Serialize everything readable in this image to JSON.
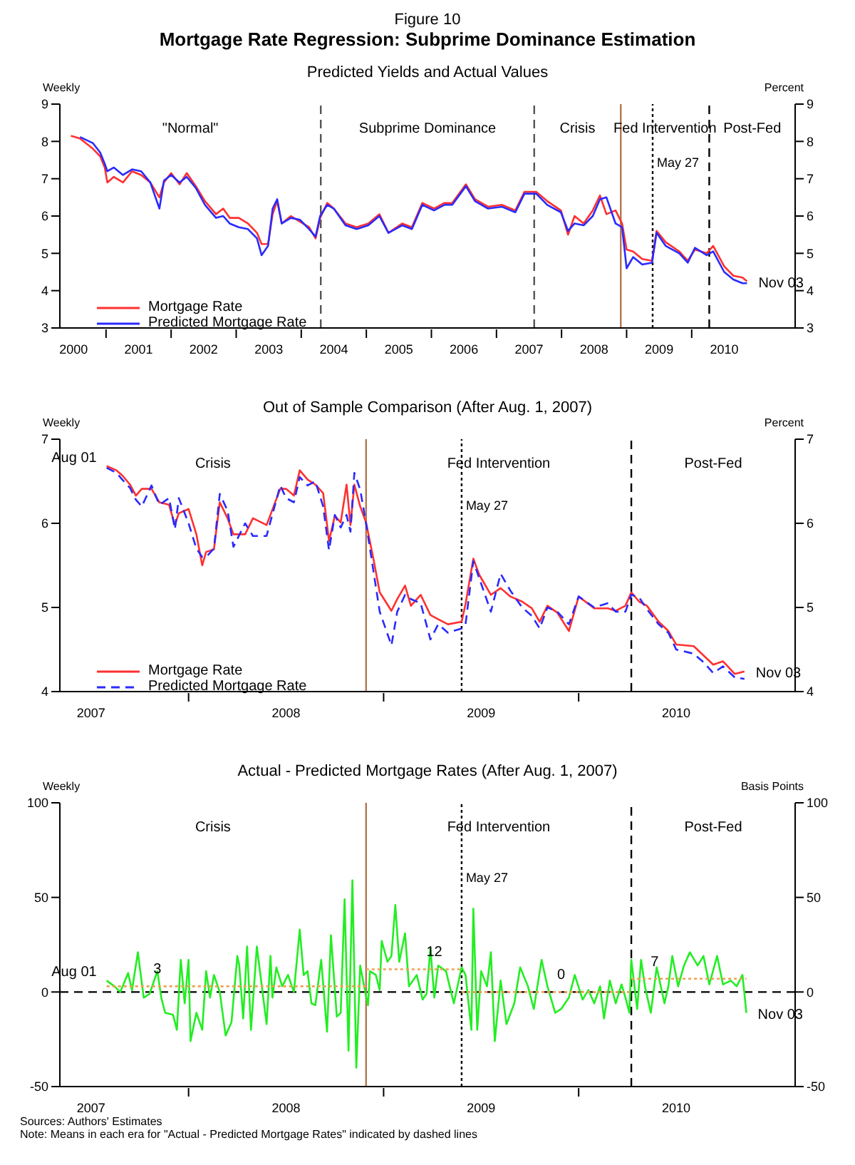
{
  "chart_data": [
    {
      "type": "line",
      "title": "Mortgage Rate Regression: Subprime Dominance Estimation",
      "subtitle": "Predicted Yields and Actual Values",
      "ylabel": "Weekly",
      "y2label": "Percent",
      "annotations": [
        "\"Normal\"",
        "Subprime Dominance",
        "Crisis",
        "Fed Intervention",
        "Post-Fed",
        "Figure 10",
        {
          "text": "Nov 03",
          "x": 2010.85,
          "y": 4.25
        }
      ],
      "x": [
        2000.46,
        2000.6,
        2000.8,
        2000.91,
        2000.98,
        2001.02,
        2001.12,
        2001.26,
        2001.4,
        2001.54,
        2001.68,
        2001.82,
        2001.89,
        2002.0,
        2002.13,
        2002.24,
        2002.38,
        2002.52,
        2002.69,
        2002.8,
        2002.9,
        2003.04,
        2003.18,
        2003.32,
        2003.39,
        2003.49,
        2003.56,
        2003.63,
        2003.7,
        2003.84,
        2003.98,
        2004.12,
        2004.22,
        2004.29,
        2004.4,
        2004.5,
        2004.68,
        2004.85,
        2005.03,
        2005.2,
        2005.34,
        2005.55,
        2005.7,
        2005.86,
        2006.04,
        2006.2,
        2006.32,
        2006.53,
        2006.67,
        2006.87,
        2007.08,
        2007.29,
        2007.43,
        2007.61,
        2007.78,
        2007.99,
        2008.1,
        2008.2,
        2008.34,
        2008.48,
        2008.59,
        2008.69,
        2008.83,
        2008.93,
        2009.0,
        2009.1,
        2009.24,
        2009.39,
        2009.46,
        2009.6,
        2009.81,
        2009.94,
        2010.05,
        2010.23,
        2010.33,
        2010.5,
        2010.64,
        2010.78,
        2010.85
      ],
      "series": [
        {
          "name": "Mortgage Rate",
          "color": "#ff3030",
          "values": [
            8.15,
            8.08,
            7.8,
            7.6,
            7.3,
            6.9,
            7.05,
            6.9,
            7.2,
            7.1,
            6.9,
            6.5,
            6.9,
            7.15,
            6.85,
            7.15,
            6.8,
            6.4,
            6.05,
            6.2,
            5.95,
            5.95,
            5.8,
            5.55,
            5.25,
            5.25,
            6.05,
            6.4,
            5.8,
            6.0,
            5.85,
            5.7,
            5.4,
            5.95,
            6.35,
            6.2,
            5.8,
            5.7,
            5.8,
            6.05,
            5.55,
            5.8,
            5.7,
            6.35,
            6.2,
            6.35,
            6.35,
            6.85,
            6.45,
            6.25,
            6.3,
            6.15,
            6.65,
            6.65,
            6.4,
            6.15,
            5.5,
            6.0,
            5.8,
            6.15,
            6.55,
            6.05,
            6.15,
            5.8,
            5.1,
            5.05,
            4.85,
            4.8,
            5.6,
            5.3,
            5.05,
            4.8,
            5.1,
            5.0,
            5.2,
            4.65,
            4.4,
            4.35,
            4.25
          ]
        },
        {
          "name": "Predicted Mortgage Rate",
          "color": "#2a2aff",
          "values": [
            null,
            8.12,
            7.95,
            7.7,
            7.4,
            7.2,
            7.3,
            7.1,
            7.25,
            7.2,
            6.9,
            6.2,
            6.95,
            7.1,
            6.9,
            7.05,
            6.75,
            6.3,
            5.95,
            6.0,
            5.8,
            5.7,
            5.65,
            5.4,
            4.95,
            5.2,
            6.2,
            6.45,
            5.8,
            5.95,
            5.9,
            5.65,
            5.45,
            6.0,
            6.3,
            6.2,
            5.75,
            5.65,
            5.75,
            6.0,
            5.55,
            5.75,
            5.65,
            6.3,
            6.15,
            6.3,
            6.3,
            6.8,
            6.4,
            6.2,
            6.25,
            6.1,
            6.6,
            6.6,
            6.3,
            6.1,
            5.6,
            5.8,
            5.75,
            6.0,
            6.45,
            6.5,
            5.8,
            5.7,
            4.6,
            4.9,
            4.7,
            4.75,
            5.55,
            5.2,
            5.0,
            4.75,
            5.15,
            4.95,
            5.05,
            4.5,
            4.3,
            4.2,
            4.2
          ]
        }
      ],
      "xlim": [
        2000.29,
        2011.59
      ],
      "xticks": [
        {
          "value": 2000.5,
          "label": "2000"
        },
        {
          "value": 2001,
          "label": null
        },
        {
          "value": 2001.5,
          "label": "2001"
        },
        {
          "value": 2002,
          "label": null
        },
        {
          "value": 2002.5,
          "label": "2002"
        },
        {
          "value": 2003,
          "label": null
        },
        {
          "value": 2003.5,
          "label": "2003"
        },
        {
          "value": 2004,
          "label": null
        },
        {
          "value": 2004.5,
          "label": "2004"
        },
        {
          "value": 2005,
          "label": null
        },
        {
          "value": 2005.5,
          "label": "2005"
        },
        {
          "value": 2006,
          "label": null
        },
        {
          "value": 2006.5,
          "label": "2006"
        },
        {
          "value": 2007,
          "label": null
        },
        {
          "value": 2007.5,
          "label": "2007"
        },
        {
          "value": 2008,
          "label": null
        },
        {
          "value": 2008.5,
          "label": "2008"
        },
        {
          "value": 2009,
          "label": null
        },
        {
          "value": 2009.5,
          "label": "2009"
        },
        {
          "value": 2010,
          "label": null
        },
        {
          "value": 2010.5,
          "label": "2010"
        }
      ],
      "ylim": [
        3,
        9
      ],
      "yticks": [
        3,
        4,
        5,
        6,
        7,
        8,
        9
      ],
      "y2lim": [
        3,
        9
      ],
      "y2ticks": [
        3,
        4,
        5,
        6,
        7,
        8,
        9
      ],
      "ref_lines": [
        {
          "axis": "x",
          "value": 2004.3,
          "color": "#555555",
          "line_style": "dashed"
        },
        {
          "axis": "x",
          "value": 2007.58,
          "color": "#555555",
          "line_style": "dashed"
        },
        {
          "axis": "x",
          "value": 2008.91,
          "color": "#b07850",
          "line_style": "solid"
        },
        {
          "axis": "x",
          "value": 2009.4,
          "label": "May 27",
          "color": "#000000",
          "line_style": "dotted"
        },
        {
          "axis": "x",
          "value": 2010.27,
          "color": "#000000",
          "line_style": "dashed"
        }
      ],
      "legend": "bottom left",
      "line_style": "solid"
    },
    {
      "type": "line",
      "title": "Out of Sample Comparison (After Aug. 1, 2007)",
      "ylabel": "Weekly",
      "y2label": "Percent",
      "annotations": [
        "Crisis",
        "Fed Intervention",
        "Post-Fed",
        {
          "text": "Aug 01",
          "x": 2007.58,
          "y": 6.68
        },
        {
          "text": "Nov 03",
          "x": 2010.85,
          "y": 4.24
        }
      ],
      "x": [
        2007.58,
        2007.63,
        2007.66,
        2007.7,
        2007.73,
        2007.76,
        2007.81,
        2007.85,
        2007.9,
        2007.93,
        2007.95,
        2008.0,
        2008.04,
        2008.07,
        2008.09,
        2008.13,
        2008.16,
        2008.2,
        2008.23,
        2008.29,
        2008.33,
        2008.4,
        2008.47,
        2008.5,
        2008.54,
        2008.57,
        2008.61,
        2008.65,
        2008.69,
        2008.72,
        2008.75,
        2008.78,
        2008.81,
        2008.83,
        2008.85,
        2008.88,
        2008.91,
        2008.95,
        2008.98,
        2009.04,
        2009.07,
        2009.11,
        2009.14,
        2009.19,
        2009.24,
        2009.28,
        2009.33,
        2009.4,
        2009.42,
        2009.46,
        2009.49,
        2009.55,
        2009.6,
        2009.65,
        2009.71,
        2009.76,
        2009.8,
        2009.84,
        2009.89,
        2009.95,
        2010.0,
        2010.08,
        2010.15,
        2010.19,
        2010.24,
        2010.27,
        2010.31,
        2010.35,
        2010.41,
        2010.46,
        2010.5,
        2010.59,
        2010.64,
        2010.69,
        2010.74,
        2010.8,
        2010.85
      ],
      "series": [
        {
          "name": "Mortgage Rate",
          "color": "#ff3030",
          "line_style": "solid",
          "values": [
            6.68,
            6.63,
            6.57,
            6.46,
            6.33,
            6.41,
            6.41,
            6.25,
            6.22,
            5.98,
            6.12,
            6.17,
            5.87,
            5.5,
            5.66,
            5.69,
            6.25,
            6.06,
            5.87,
            5.87,
            6.06,
            5.98,
            6.41,
            6.41,
            6.33,
            6.63,
            6.52,
            6.46,
            6.36,
            5.79,
            6.09,
            6.01,
            6.46,
            5.98,
            6.46,
            6.2,
            6.01,
            5.55,
            5.18,
            4.96,
            5.1,
            5.26,
            5.02,
            5.15,
            4.91,
            4.86,
            4.8,
            4.83,
            5.04,
            5.58,
            5.39,
            5.15,
            5.23,
            5.13,
            5.07,
            4.99,
            4.83,
            5.02,
            4.94,
            4.72,
            5.13,
            4.99,
            4.99,
            4.96,
            5.02,
            5.18,
            5.07,
            5.02,
            4.83,
            4.72,
            4.56,
            4.54,
            4.43,
            4.32,
            4.36,
            4.21,
            4.24
          ]
        },
        {
          "name": "Predicted Mortgage Rate",
          "color": "#2a2aff",
          "line_style": "dashed",
          "values": [
            6.66,
            6.6,
            6.52,
            6.42,
            6.28,
            6.2,
            6.45,
            6.22,
            6.3,
            5.93,
            6.3,
            6.0,
            5.7,
            5.6,
            5.6,
            5.7,
            6.35,
            6.15,
            5.72,
            6.0,
            5.85,
            5.85,
            6.45,
            6.3,
            6.25,
            6.55,
            6.45,
            6.5,
            6.2,
            5.68,
            6.1,
            5.95,
            6.1,
            5.9,
            6.6,
            6.4,
            6.0,
            5.4,
            4.95,
            4.55,
            4.95,
            5.15,
            5.1,
            5.05,
            4.62,
            4.8,
            4.7,
            4.75,
            4.8,
            5.55,
            5.35,
            4.95,
            5.4,
            5.2,
            5.0,
            4.9,
            4.75,
            5.0,
            4.95,
            4.8,
            5.13,
            5.0,
            5.05,
            4.95,
            4.95,
            5.15,
            5.12,
            4.98,
            4.8,
            4.7,
            4.5,
            4.45,
            4.35,
            4.22,
            4.3,
            4.17,
            4.15
          ]
        }
      ],
      "xlim": [
        2007.34,
        2011.11
      ],
      "xticks": [
        {
          "value": 2007.5,
          "label": "2007"
        },
        {
          "value": 2008,
          "label": null
        },
        {
          "value": 2008.5,
          "label": "2008"
        },
        {
          "value": 2009,
          "label": null
        },
        {
          "value": 2009.5,
          "label": "2009"
        },
        {
          "value": 2010,
          "label": null
        },
        {
          "value": 2010.5,
          "label": "2010"
        }
      ],
      "ylim": [
        4,
        7
      ],
      "yticks": [
        4,
        5,
        6,
        7
      ],
      "y2lim": [
        4,
        7
      ],
      "y2ticks": [
        4,
        5,
        6,
        7
      ],
      "ref_lines": [
        {
          "axis": "x",
          "value": 2008.91,
          "color": "#b07850",
          "line_style": "solid"
        },
        {
          "axis": "x",
          "value": 2009.4,
          "label": "May 27",
          "color": "#000000",
          "line_style": "dotted"
        },
        {
          "axis": "x",
          "value": 2010.27,
          "color": "#000000",
          "line_style": "dashed"
        }
      ],
      "legend": "bottom left"
    },
    {
      "type": "line",
      "title": "Actual - Predicted Mortgage Rates (After Aug. 1, 2007)",
      "ylabel": "Weekly",
      "y2label": "Basis Points",
      "annotations": [
        "Crisis",
        "Fed Intervention",
        "Post-Fed",
        {
          "text": "Aug 01",
          "x": 2007.58,
          "y": 6
        },
        {
          "text": "Nov 03",
          "x": 2010.86,
          "y": -11
        },
        {
          "text": "3",
          "x": 2007.84,
          "y": 3
        },
        {
          "text": "12",
          "x": 2009.26,
          "y": 12
        },
        {
          "text": "0",
          "x": 2009.91,
          "y": 0
        },
        {
          "text": "7",
          "x": 2010.39,
          "y": 7
        },
        "Sources: Authors' Estimates",
        "Note: Means in each era for \"Actual - Predicted Mortgage Rates\" indicated by dashed lines"
      ],
      "x": [
        2007.58,
        2007.62,
        2007.65,
        2007.69,
        2007.71,
        2007.74,
        2007.77,
        2007.8,
        2007.84,
        2007.86,
        2007.88,
        2007.92,
        2007.94,
        2007.96,
        2007.98,
        2008.0,
        2008.01,
        2008.04,
        2008.07,
        2008.09,
        2008.11,
        2008.13,
        2008.16,
        2008.19,
        2008.22,
        2008.25,
        2008.26,
        2008.28,
        2008.3,
        2008.32,
        2008.35,
        2008.4,
        2008.42,
        2008.43,
        2008.45,
        2008.48,
        2008.51,
        2008.54,
        2008.57,
        2008.59,
        2008.61,
        2008.63,
        2008.65,
        2008.68,
        2008.71,
        2008.73,
        2008.76,
        2008.78,
        2008.8,
        2008.82,
        2008.84,
        2008.86,
        2008.88,
        2008.9,
        2008.92,
        2008.93,
        2008.96,
        2008.98,
        2008.99,
        2009.02,
        2009.04,
        2009.06,
        2009.08,
        2009.11,
        2009.13,
        2009.17,
        2009.2,
        2009.22,
        2009.24,
        2009.26,
        2009.28,
        2009.32,
        2009.36,
        2009.4,
        2009.42,
        2009.45,
        2009.46,
        2009.48,
        2009.5,
        2009.53,
        2009.55,
        2009.57,
        2009.6,
        2009.63,
        2009.67,
        2009.7,
        2009.74,
        2009.77,
        2009.81,
        2009.84,
        2009.88,
        2009.91,
        2009.95,
        2009.98,
        2010.02,
        2010.05,
        2010.08,
        2010.11,
        2010.13,
        2010.16,
        2010.19,
        2010.22,
        2010.24,
        2010.26,
        2010.27,
        2010.3,
        2010.32,
        2010.34,
        2010.37,
        2010.4,
        2010.44,
        2010.46,
        2010.48,
        2010.51,
        2010.54,
        2010.57,
        2010.61,
        2010.64,
        2010.67,
        2010.71,
        2010.74,
        2010.78,
        2010.81,
        2010.84,
        2010.86
      ],
      "series": [
        {
          "color": "#22ee22",
          "values": [
            6,
            3,
            0,
            10,
            1,
            21,
            -3,
            -1,
            11,
            -3,
            -11,
            -12,
            -20,
            17,
            -6,
            17,
            -26,
            -11,
            -20,
            11,
            -3,
            9,
            0,
            -23,
            -16,
            19,
            14,
            -14,
            24,
            -20,
            24,
            -17,
            19,
            -3,
            13,
            3,
            9,
            0,
            33,
            9,
            11,
            -6,
            -7,
            17,
            -21,
            30,
            -13,
            -11,
            49,
            -31,
            59,
            -40,
            14,
            3,
            -7,
            11,
            9,
            1,
            27,
            16,
            19,
            46,
            16,
            31,
            3,
            9,
            -4,
            -1,
            23,
            -3,
            14,
            11,
            -6,
            13,
            9,
            -20,
            44,
            -20,
            11,
            3,
            21,
            -26,
            6,
            -17,
            -6,
            13,
            3,
            -9,
            17,
            3,
            -11,
            -9,
            -3,
            9,
            -4,
            1,
            -6,
            3,
            -14,
            6,
            -6,
            4,
            -3,
            -11,
            17,
            -9,
            17,
            3,
            -11,
            13,
            -6,
            3,
            19,
            3,
            14,
            21,
            14,
            19,
            4,
            19,
            4,
            6,
            3,
            9,
            -11
          ]
        },
        {
          "color": "#f0a050",
          "line_style": "dotted",
          "x": [
            2007.58,
            2008.91
          ],
          "values": [
            3,
            3
          ]
        },
        {
          "color": "#f0a050",
          "line_style": "dotted",
          "x": [
            2008.91,
            2009.4
          ],
          "values": [
            12,
            12
          ]
        },
        {
          "color": "#f0a050",
          "line_style": "dotted",
          "x": [
            2009.4,
            2010.27
          ],
          "values": [
            0,
            0
          ]
        },
        {
          "color": "#f0a050",
          "line_style": "dotted",
          "x": [
            2010.27,
            2010.86
          ],
          "values": [
            7,
            7
          ]
        }
      ],
      "xlim": [
        2007.34,
        2011.11
      ],
      "xticks": [
        {
          "value": 2007.5,
          "label": "2007"
        },
        {
          "value": 2008,
          "label": null
        },
        {
          "value": 2008.5,
          "label": "2008"
        },
        {
          "value": 2009,
          "label": null
        },
        {
          "value": 2009.5,
          "label": "2009"
        },
        {
          "value": 2010,
          "label": null
        },
        {
          "value": 2010.5,
          "label": "2010"
        }
      ],
      "ylim": [
        -50,
        100
      ],
      "yticks": [
        -50,
        0,
        50,
        100
      ],
      "y2lim": [
        -50,
        100
      ],
      "y2ticks": [
        -50,
        0,
        50,
        100
      ],
      "ref_lines": [
        {
          "axis": "y",
          "value": 0,
          "color": "#000000",
          "line_style": "dashed"
        },
        {
          "axis": "x",
          "value": 2008.91,
          "color": "#b07850",
          "line_style": "solid"
        },
        {
          "axis": "x",
          "value": 2009.4,
          "label": "May 27",
          "color": "#000000",
          "line_style": "dotted"
        },
        {
          "axis": "x",
          "value": 2010.27,
          "color": "#000000",
          "line_style": "dashed"
        }
      ]
    }
  ]
}
